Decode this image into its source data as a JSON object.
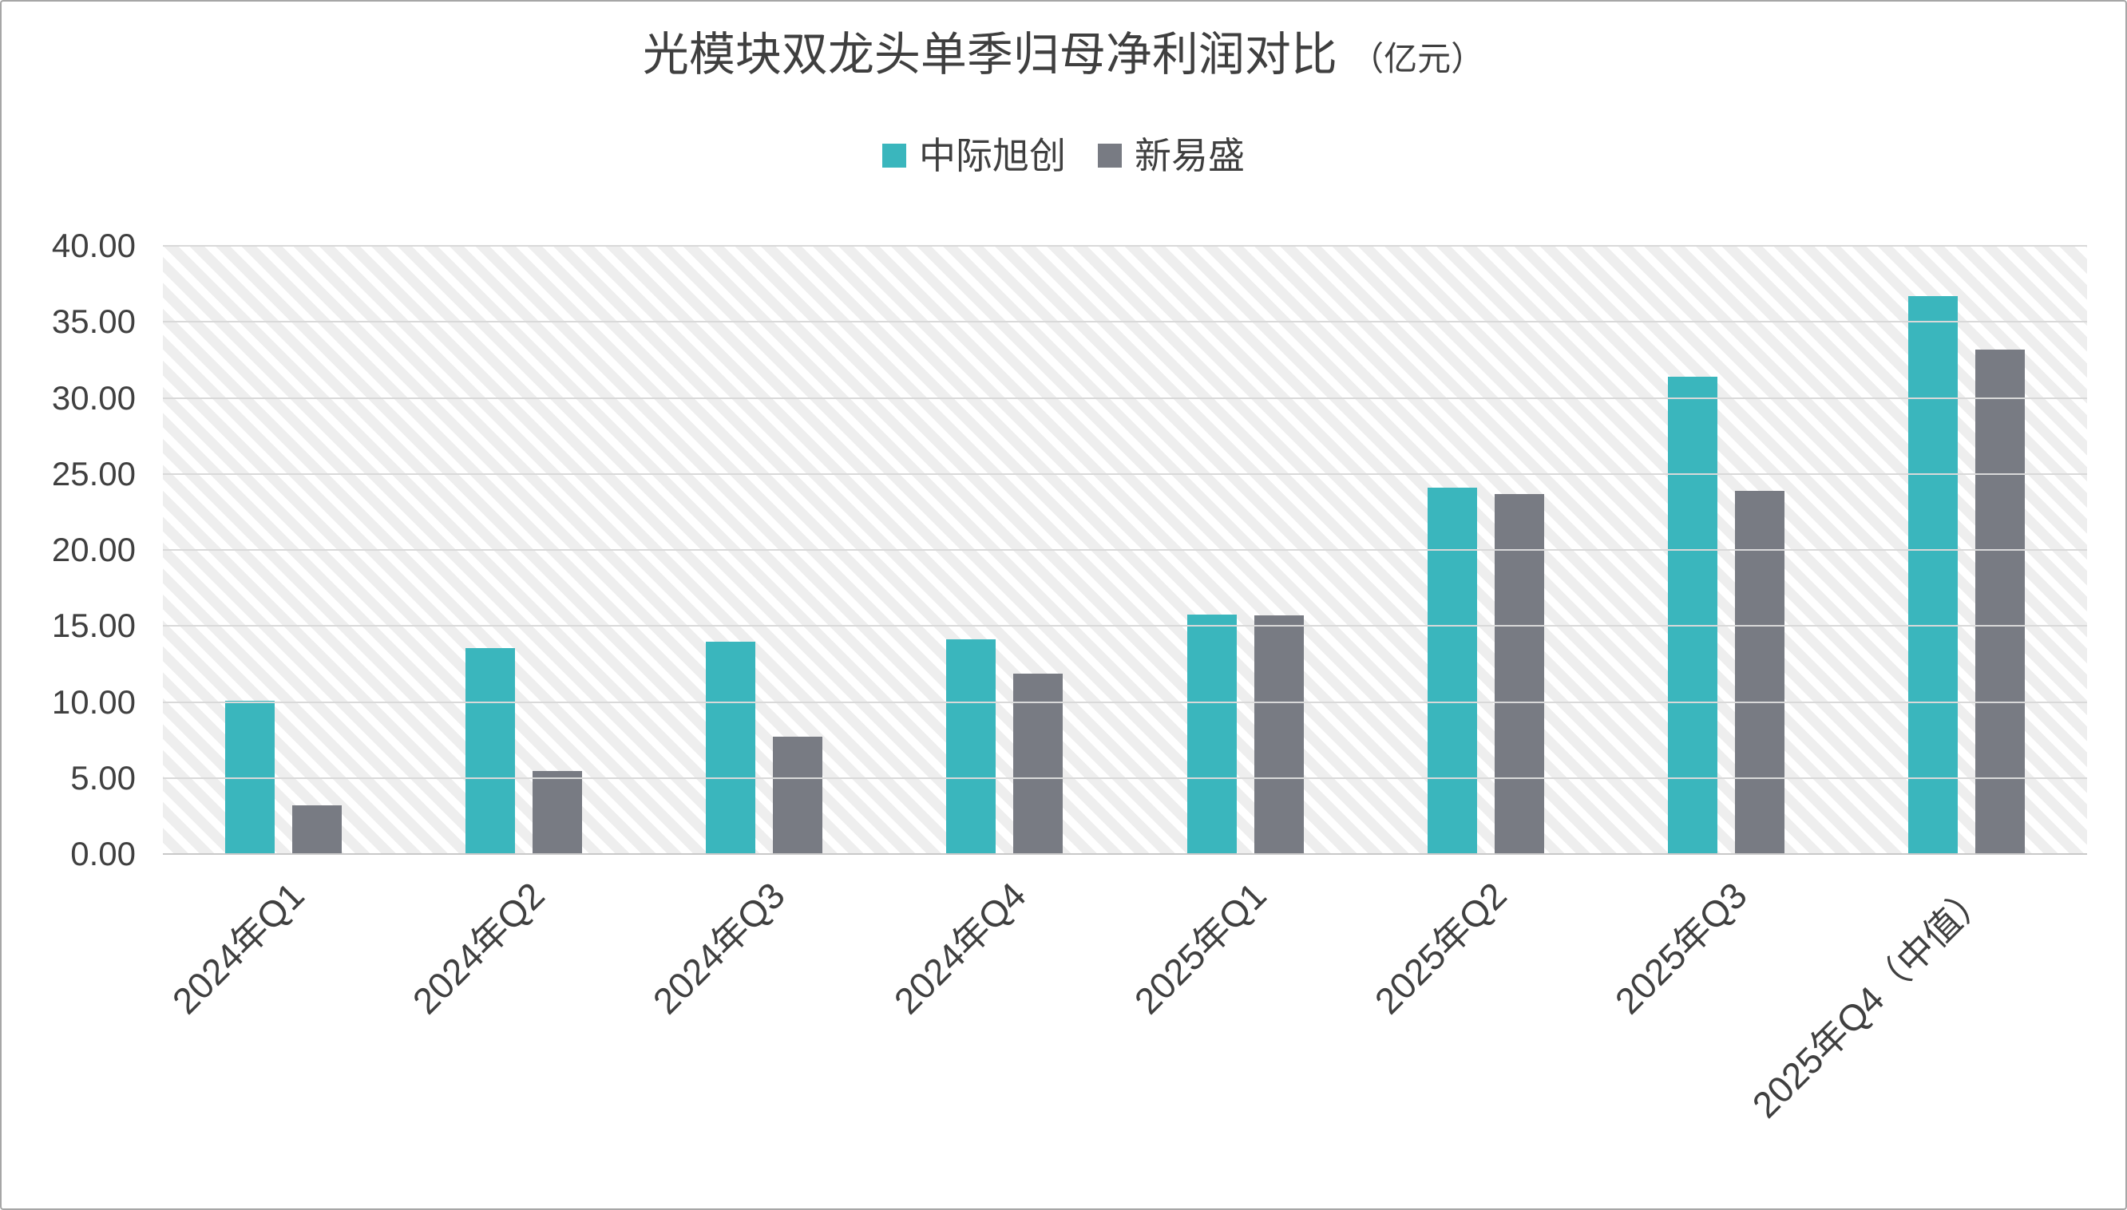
{
  "title": {
    "text": "光模块双龙头单季归母净利润对比",
    "unit": "（亿元）"
  },
  "colors": {
    "series_1": "#3ab6bd",
    "series_2": "#787b83",
    "gridline": "#d9d9d9",
    "axis_line": "#c8c8c8",
    "text": "#404040",
    "hatch": "#eeeeee",
    "border": "#a6a6a6"
  },
  "chart_data": {
    "type": "bar",
    "title": "光模块双龙头单季归母净利润对比（亿元）",
    "xlabel": "",
    "ylabel": "",
    "categories": [
      "2024年Q1",
      "2024年Q2",
      "2024年Q3",
      "2024年Q4",
      "2025年Q1",
      "2025年Q2",
      "2025年Q3",
      "2025年Q4（中值）"
    ],
    "series": [
      {
        "name": "中际旭创",
        "color": "#3ab6bd",
        "values": [
          10.09,
          13.56,
          13.94,
          14.14,
          15.73,
          24.11,
          31.37,
          36.7
        ]
      },
      {
        "name": "新易盛",
        "color": "#787b83",
        "values": [
          3.19,
          5.44,
          7.72,
          11.86,
          15.68,
          23.67,
          23.87,
          33.2
        ]
      }
    ],
    "ylim": [
      0,
      40
    ],
    "ytick_step": 5,
    "ytick_labels_top_to_bottom": [
      "40.00",
      "35.00",
      "30.00",
      "25.00",
      "20.00",
      "15.00",
      "10.00",
      "5.00",
      "0.00"
    ],
    "grid": "horizontal",
    "plot_background": "diagonal-hatch",
    "legend_position": "top-center",
    "xtick_rotation_deg": 45
  }
}
